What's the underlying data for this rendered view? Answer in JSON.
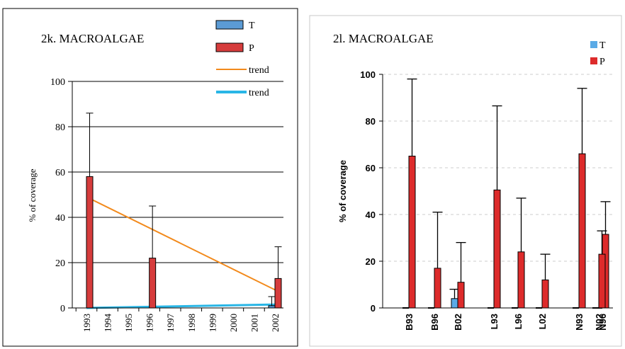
{
  "chart_data": [
    {
      "type": "bar",
      "title": "2k. MACROALGAE",
      "ylabel": "% of coverage",
      "xlabel": "",
      "ylim": [
        0,
        100
      ],
      "yticks": [
        0,
        20,
        40,
        60,
        80,
        100
      ],
      "grid": true,
      "legend_position": "top-right",
      "categories": [
        "1993",
        "1994",
        "1995",
        "1996",
        "1997",
        "1998",
        "1999",
        "2000",
        "2001",
        "2002"
      ],
      "series": [
        {
          "name": "T",
          "color": "#5b9bd5",
          "values": [
            0,
            null,
            null,
            0,
            null,
            null,
            null,
            null,
            null,
            1
          ],
          "error": [
            0,
            null,
            null,
            0,
            null,
            null,
            null,
            null,
            null,
            4
          ]
        },
        {
          "name": "P",
          "color": "#d63c3c",
          "values": [
            58,
            null,
            null,
            22,
            null,
            null,
            null,
            null,
            null,
            13
          ],
          "error": [
            28,
            null,
            null,
            23,
            null,
            null,
            null,
            null,
            null,
            14
          ]
        }
      ],
      "trends": [
        {
          "name": "trend",
          "color": "#f28a1c",
          "x": [
            "1993",
            "2002"
          ],
          "y": [
            49,
            8
          ]
        },
        {
          "name": "trend",
          "color": "#29b6e6",
          "x": [
            "1993",
            "2002"
          ],
          "y": [
            0,
            1.5
          ]
        }
      ]
    },
    {
      "type": "bar",
      "title": "2l. MACROALGAE",
      "ylabel": "% of coverage",
      "xlabel": "",
      "ylim": [
        0,
        100
      ],
      "yticks": [
        0,
        20,
        40,
        60,
        80,
        100
      ],
      "grid": true,
      "legend_position": "top-right",
      "categories": [
        "B93",
        "B96",
        "B02",
        "L93",
        "L96",
        "L02",
        "N93",
        "N96",
        "N02"
      ],
      "series": [
        {
          "name": "T",
          "color": "#5aaae6",
          "values": [
            0,
            0,
            4,
            0,
            0,
            0,
            0,
            0,
            0
          ],
          "error": [
            0,
            0,
            4,
            0,
            0,
            0,
            0,
            0,
            0
          ]
        },
        {
          "name": "P",
          "color": "#dd2b2b",
          "values": [
            65,
            17,
            11,
            50.5,
            24,
            12,
            66,
            31.5,
            23
          ],
          "error": [
            33,
            24,
            17,
            36,
            23,
            11,
            28,
            14,
            10
          ]
        }
      ]
    }
  ]
}
